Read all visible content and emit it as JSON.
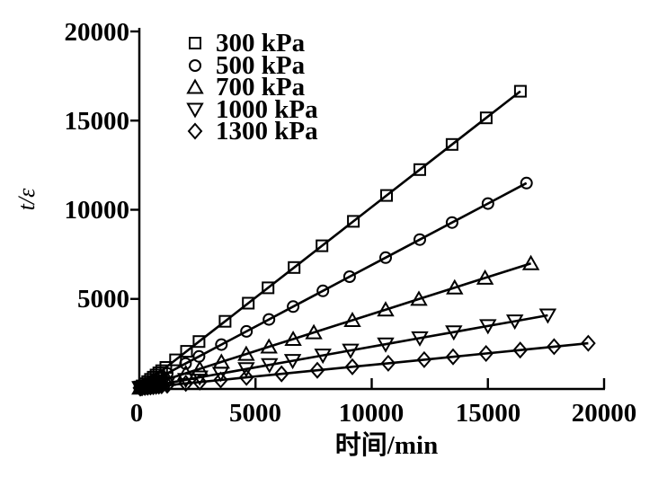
{
  "figure": {
    "background_color": "#ffffff",
    "foreground_color": "#000000"
  },
  "chart_data": {
    "type": "line",
    "title": "",
    "xlabel": "时间/min",
    "ylabel": "t/ε",
    "xlim": [
      0,
      20000
    ],
    "ylim": [
      0,
      20000
    ],
    "x_ticks": [
      0,
      5000,
      10000,
      15000,
      20000
    ],
    "y_ticks": [
      5000,
      10000,
      15000,
      20000
    ],
    "grid": false,
    "legend_position": "upper-left-inside",
    "marker_style": "open",
    "line_color": "#000000",
    "series": [
      {
        "label": "300 kPa",
        "marker": "square",
        "slope": 1.015,
        "x": [
          30,
          60,
          120,
          240,
          360,
          480,
          600,
          720,
          840,
          960,
          1140,
          1560,
          2030,
          2570,
          3690,
          4690,
          5540,
          6660,
          7860,
          9210,
          10640,
          12070,
          13460,
          14930,
          16400
        ],
        "y": [
          30,
          61,
          122,
          244,
          365,
          487,
          609,
          731,
          853,
          974,
          1157,
          1583,
          2060,
          2609,
          3745,
          4760,
          5623,
          6760,
          7978,
          9348,
          10800,
          12251,
          13662,
          15154,
          16646
        ]
      },
      {
        "label": "500 kPa",
        "marker": "circle",
        "slope": 0.69,
        "x": [
          30,
          60,
          120,
          240,
          360,
          480,
          600,
          720,
          840,
          960,
          1200,
          1990,
          2570,
          3530,
          4610,
          5580,
          6620,
          7900,
          9050,
          10600,
          12070,
          13460,
          15000,
          16660
        ],
        "y": [
          21,
          41,
          83,
          166,
          248,
          331,
          414,
          497,
          580,
          662,
          828,
          1373,
          1773,
          2436,
          3181,
          3850,
          4568,
          5451,
          6245,
          7314,
          8328,
          9287,
          10350,
          11495
        ]
      },
      {
        "label": "700 kPa",
        "marker": "triangle-up",
        "slope": 0.415,
        "x": [
          30,
          60,
          120,
          240,
          360,
          480,
          600,
          720,
          840,
          960,
          1200,
          2000,
          2600,
          3530,
          4600,
          5580,
          6620,
          7510,
          9170,
          10600,
          12030,
          13570,
          14880,
          16850
        ],
        "y": [
          12,
          25,
          50,
          100,
          149,
          199,
          249,
          299,
          349,
          398,
          498,
          830,
          1079,
          1465,
          1909,
          2316,
          2747,
          3117,
          3806,
          4399,
          4992,
          5632,
          6175,
          6993
        ]
      },
      {
        "label": "1000 kPa",
        "marker": "triangle-down",
        "slope": 0.232,
        "x": [
          30,
          60,
          120,
          240,
          360,
          480,
          600,
          720,
          840,
          960,
          1200,
          2000,
          2600,
          3500,
          4600,
          5600,
          6600,
          7900,
          9090,
          10600,
          12070,
          13530,
          15000,
          16160,
          17580
        ],
        "y": [
          7,
          14,
          28,
          56,
          84,
          111,
          139,
          167,
          195,
          223,
          278,
          464,
          603,
          812,
          1067,
          1299,
          1531,
          1833,
          2109,
          2459,
          2800,
          3139,
          3480,
          3749,
          4079
        ]
      },
      {
        "label": "1300 kPa",
        "marker": "diamond",
        "slope": 0.13,
        "x": [
          30,
          60,
          120,
          240,
          360,
          480,
          600,
          720,
          840,
          960,
          1200,
          2000,
          2600,
          3500,
          4610,
          6120,
          7660,
          9170,
          10710,
          12260,
          13500,
          14920,
          16390,
          17850,
          19320
        ],
        "y": [
          4,
          8,
          16,
          31,
          47,
          62,
          78,
          94,
          109,
          125,
          156,
          260,
          338,
          455,
          599,
          796,
          996,
          1192,
          1392,
          1594,
          1755,
          1940,
          2131,
          2321,
          2512
        ]
      }
    ]
  }
}
